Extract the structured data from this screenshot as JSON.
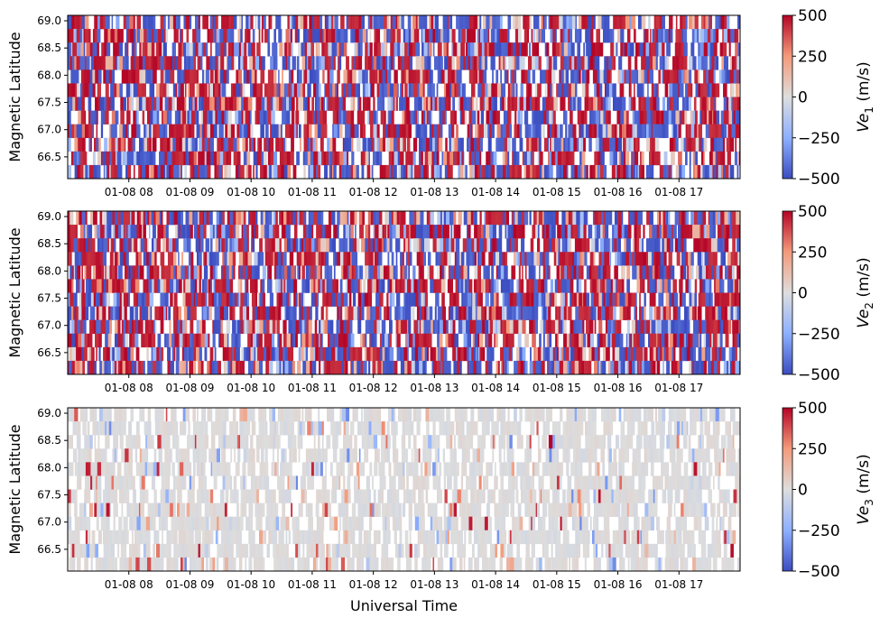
{
  "chart_data": [
    {
      "type": "heatmap",
      "title": "",
      "xlabel": "",
      "ylabel": "Magnetic Latitude",
      "x_tick_labels": [
        "01-08 08",
        "01-08 09",
        "01-08 10",
        "01-08 11",
        "01-08 12",
        "01-08 13",
        "01-08 14",
        "01-08 15",
        "01-08 16",
        "01-08 17"
      ],
      "x_range_hours": [
        7.0,
        18.0
      ],
      "x_ticks_hours": [
        8,
        9,
        10,
        11,
        12,
        13,
        14,
        15,
        16,
        17
      ],
      "ylim": [
        66.1,
        69.1
      ],
      "y_ticks": [
        66.5,
        67.0,
        67.5,
        68.0,
        68.5,
        69.0
      ],
      "y_tick_labels": [
        "66.5",
        "67.0",
        "67.5",
        "68.0",
        "68.5",
        "69.0"
      ],
      "colorbar": {
        "label_base": "Ve",
        "label_sub": "1",
        "label_unit": " (m/s)",
        "vmin": -500,
        "vmax": 500,
        "ticks": [
          500,
          250,
          0,
          -250,
          -500
        ],
        "tick_labels": [
          "500",
          "250",
          "0",
          "−250",
          "−500"
        ],
        "colormap": "coolwarm"
      },
      "pattern": {
        "mode": "extreme",
        "fill_fraction": 0.78
      }
    },
    {
      "type": "heatmap",
      "title": "",
      "xlabel": "",
      "ylabel": "Magnetic Latitude",
      "x_tick_labels": [
        "01-08 08",
        "01-08 09",
        "01-08 10",
        "01-08 11",
        "01-08 12",
        "01-08 13",
        "01-08 14",
        "01-08 15",
        "01-08 16",
        "01-08 17"
      ],
      "x_range_hours": [
        7.0,
        18.0
      ],
      "x_ticks_hours": [
        8,
        9,
        10,
        11,
        12,
        13,
        14,
        15,
        16,
        17
      ],
      "ylim": [
        66.1,
        69.1
      ],
      "y_ticks": [
        66.5,
        67.0,
        67.5,
        68.0,
        68.5,
        69.0
      ],
      "y_tick_labels": [
        "66.5",
        "67.0",
        "67.5",
        "68.0",
        "68.5",
        "69.0"
      ],
      "colorbar": {
        "label_base": "Ve",
        "label_sub": "2",
        "label_unit": " (m/s)",
        "vmin": -500,
        "vmax": 500,
        "ticks": [
          500,
          250,
          0,
          -250,
          -500
        ],
        "tick_labels": [
          "500",
          "250",
          "0",
          "−250",
          "−500"
        ],
        "colormap": "coolwarm"
      },
      "pattern": {
        "mode": "extreme",
        "fill_fraction": 0.8
      }
    },
    {
      "type": "heatmap",
      "title": "",
      "xlabel": "Universal Time",
      "ylabel": "Magnetic Latitude",
      "x_tick_labels": [
        "01-08 08",
        "01-08 09",
        "01-08 10",
        "01-08 11",
        "01-08 12",
        "01-08 13",
        "01-08 14",
        "01-08 15",
        "01-08 16",
        "01-08 17"
      ],
      "x_range_hours": [
        7.0,
        18.0
      ],
      "x_ticks_hours": [
        8,
        9,
        10,
        11,
        12,
        13,
        14,
        15,
        16,
        17
      ],
      "ylim": [
        66.1,
        69.1
      ],
      "y_ticks": [
        66.5,
        67.0,
        67.5,
        68.0,
        68.5,
        69.0
      ],
      "y_tick_labels": [
        "66.5",
        "67.0",
        "67.5",
        "68.0",
        "68.5",
        "69.0"
      ],
      "colorbar": {
        "label_base": "Ve",
        "label_sub": "3",
        "label_unit": " (m/s)",
        "vmin": -500,
        "vmax": 500,
        "ticks": [
          500,
          250,
          0,
          -250,
          -500
        ],
        "tick_labels": [
          "500",
          "250",
          "0",
          "−250",
          "−500"
        ],
        "colormap": "coolwarm"
      },
      "pattern": {
        "mode": "near-zero",
        "fill_fraction": 0.7
      }
    }
  ]
}
